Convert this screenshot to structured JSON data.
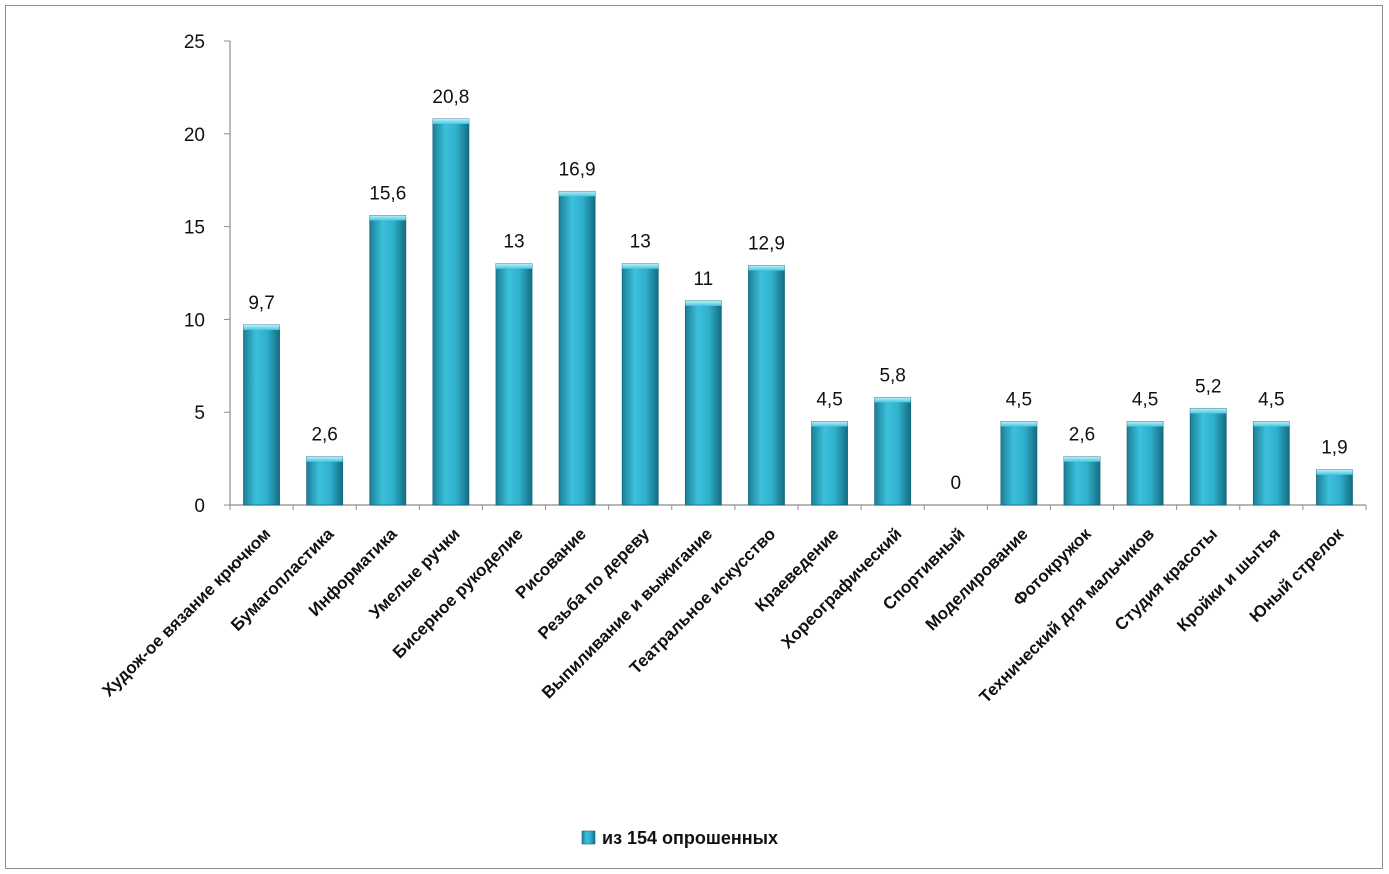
{
  "chart_data": {
    "type": "bar",
    "categories": [
      "Худож-ое вязание крючком",
      "Бумагопластика",
      "Информатика",
      "Умелые ручки",
      "Бисерное рукоделие",
      "Рисование",
      "Резьба по дереву",
      "Выпиливание и выжигание",
      "Театральное искусство",
      "Краеведение",
      "Хореографический",
      "Спортивный",
      "Моделирование",
      "Фотокружок",
      "Технический для мальчиков",
      "Студия красоты",
      "Кройки и шытья",
      "Юный стрелок"
    ],
    "series": [
      {
        "name": "из 154 опрошенных",
        "values": [
          9.7,
          2.6,
          15.6,
          20.8,
          13,
          16.9,
          13,
          11,
          12.9,
          4.5,
          5.8,
          0,
          4.5,
          2.6,
          4.5,
          5.2,
          4.5,
          1.9
        ],
        "labels": [
          "9,7",
          "2,6",
          "15,6",
          "20,8",
          "13",
          "16,9",
          "13",
          "11",
          "12,9",
          "4,5",
          "5,8",
          "0",
          "4,5",
          "2,6",
          "4,5",
          "5,2",
          "4,5",
          "1,9"
        ],
        "color": "#2aa3bf"
      }
    ],
    "yticks": [
      "0",
      "5",
      "10",
      "15",
      "20",
      "25"
    ],
    "ylim": [
      0,
      25
    ],
    "grid": false,
    "legend_position": "bottom"
  }
}
